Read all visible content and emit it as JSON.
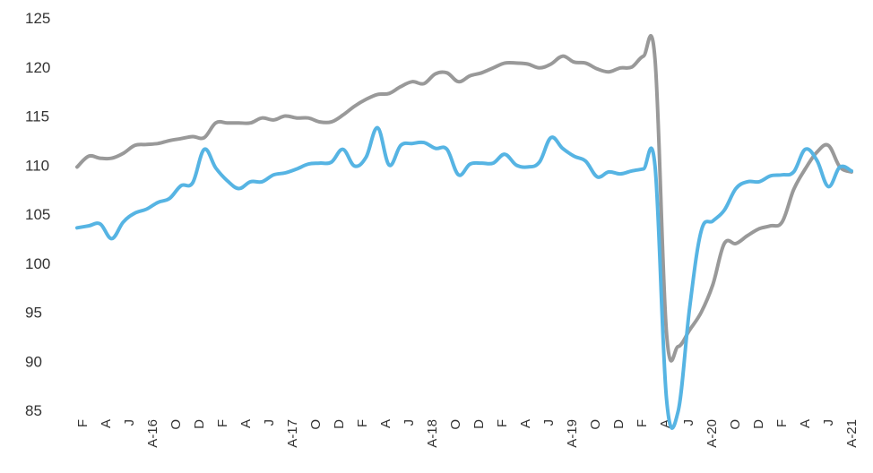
{
  "chart_data": {
    "type": "line",
    "title": "",
    "xlabel": "",
    "ylabel": "",
    "ylim": [
      85,
      125
    ],
    "yticks": [
      125,
      120,
      115,
      110,
      105,
      100,
      95,
      90,
      85
    ],
    "grid": false,
    "legend": "none",
    "x_tick_labels": [
      {
        "i": 0,
        "label": "F"
      },
      {
        "i": 1,
        "label": "A"
      },
      {
        "i": 2,
        "label": "J"
      },
      {
        "i": 3,
        "label": "A-16"
      },
      {
        "i": 4,
        "label": "O"
      },
      {
        "i": 5,
        "label": "D"
      },
      {
        "i": 6,
        "label": "F"
      },
      {
        "i": 7,
        "label": "A"
      },
      {
        "i": 8,
        "label": "J"
      },
      {
        "i": 9,
        "label": "A-17"
      },
      {
        "i": 10,
        "label": "O"
      },
      {
        "i": 11,
        "label": "D"
      },
      {
        "i": 12,
        "label": "F"
      },
      {
        "i": 13,
        "label": "A"
      },
      {
        "i": 14,
        "label": "J"
      },
      {
        "i": 15,
        "label": "A-18"
      },
      {
        "i": 16,
        "label": "O"
      },
      {
        "i": 17,
        "label": "D"
      },
      {
        "i": 18,
        "label": "F"
      },
      {
        "i": 19,
        "label": "A"
      },
      {
        "i": 20,
        "label": "J"
      },
      {
        "i": 21,
        "label": "A-19"
      },
      {
        "i": 22,
        "label": "O"
      },
      {
        "i": 23,
        "label": "D"
      },
      {
        "i": 24,
        "label": "F"
      },
      {
        "i": 25,
        "label": "A"
      },
      {
        "i": 26,
        "label": "J"
      },
      {
        "i": 27,
        "label": "A-20"
      },
      {
        "i": 28,
        "label": "O"
      },
      {
        "i": 29,
        "label": "D"
      },
      {
        "i": 30,
        "label": "F"
      },
      {
        "i": 31,
        "label": "A"
      },
      {
        "i": 32,
        "label": "J"
      },
      {
        "i": 33,
        "label": "A-21"
      }
    ],
    "series": [
      {
        "color": "#999999",
        "values": [
          109.8,
          110.9,
          110.7,
          110.7,
          111.2,
          112.0,
          112.1,
          112.2,
          112.5,
          112.7,
          112.9,
          112.8,
          114.3,
          114.3,
          114.3,
          114.3,
          114.8,
          114.6,
          115.0,
          114.8,
          114.8,
          114.4,
          114.4,
          115.1,
          116.0,
          116.7,
          117.2,
          117.3,
          118.0,
          118.5,
          118.3,
          119.3,
          119.4,
          118.5,
          119.1,
          119.4,
          119.9,
          120.4,
          120.4,
          120.3,
          119.9,
          120.3,
          121.1,
          120.5,
          120.4,
          119.8,
          119.5,
          119.9,
          120.0,
          121.1,
          120.8,
          92.8,
          91.5,
          93.2,
          95.0,
          97.8,
          102.0,
          102.0,
          102.8,
          103.5,
          103.8,
          104.2,
          107.5,
          109.6,
          111.3,
          112.0,
          109.8,
          109.3
        ]
      },
      {
        "color": "#56b4e3",
        "values": [
          103.6,
          103.8,
          104.0,
          102.5,
          104.2,
          105.1,
          105.5,
          106.2,
          106.6,
          107.9,
          108.2,
          111.6,
          109.7,
          108.4,
          107.6,
          108.3,
          108.3,
          109.0,
          109.2,
          109.6,
          110.1,
          110.2,
          110.3,
          111.6,
          109.9,
          110.8,
          113.8,
          110.0,
          112.0,
          112.2,
          112.3,
          111.7,
          111.6,
          109.0,
          110.1,
          110.2,
          110.2,
          111.1,
          110.0,
          109.8,
          110.3,
          112.8,
          111.7,
          110.9,
          110.4,
          108.8,
          109.3,
          109.1,
          109.4,
          109.6,
          109.9,
          86.1,
          84.9,
          95.5,
          103.3,
          104.3,
          105.4,
          107.6,
          108.3,
          108.3,
          108.9,
          109.0,
          109.3,
          111.6,
          110.5,
          107.8,
          109.8,
          109.4
        ]
      }
    ]
  }
}
